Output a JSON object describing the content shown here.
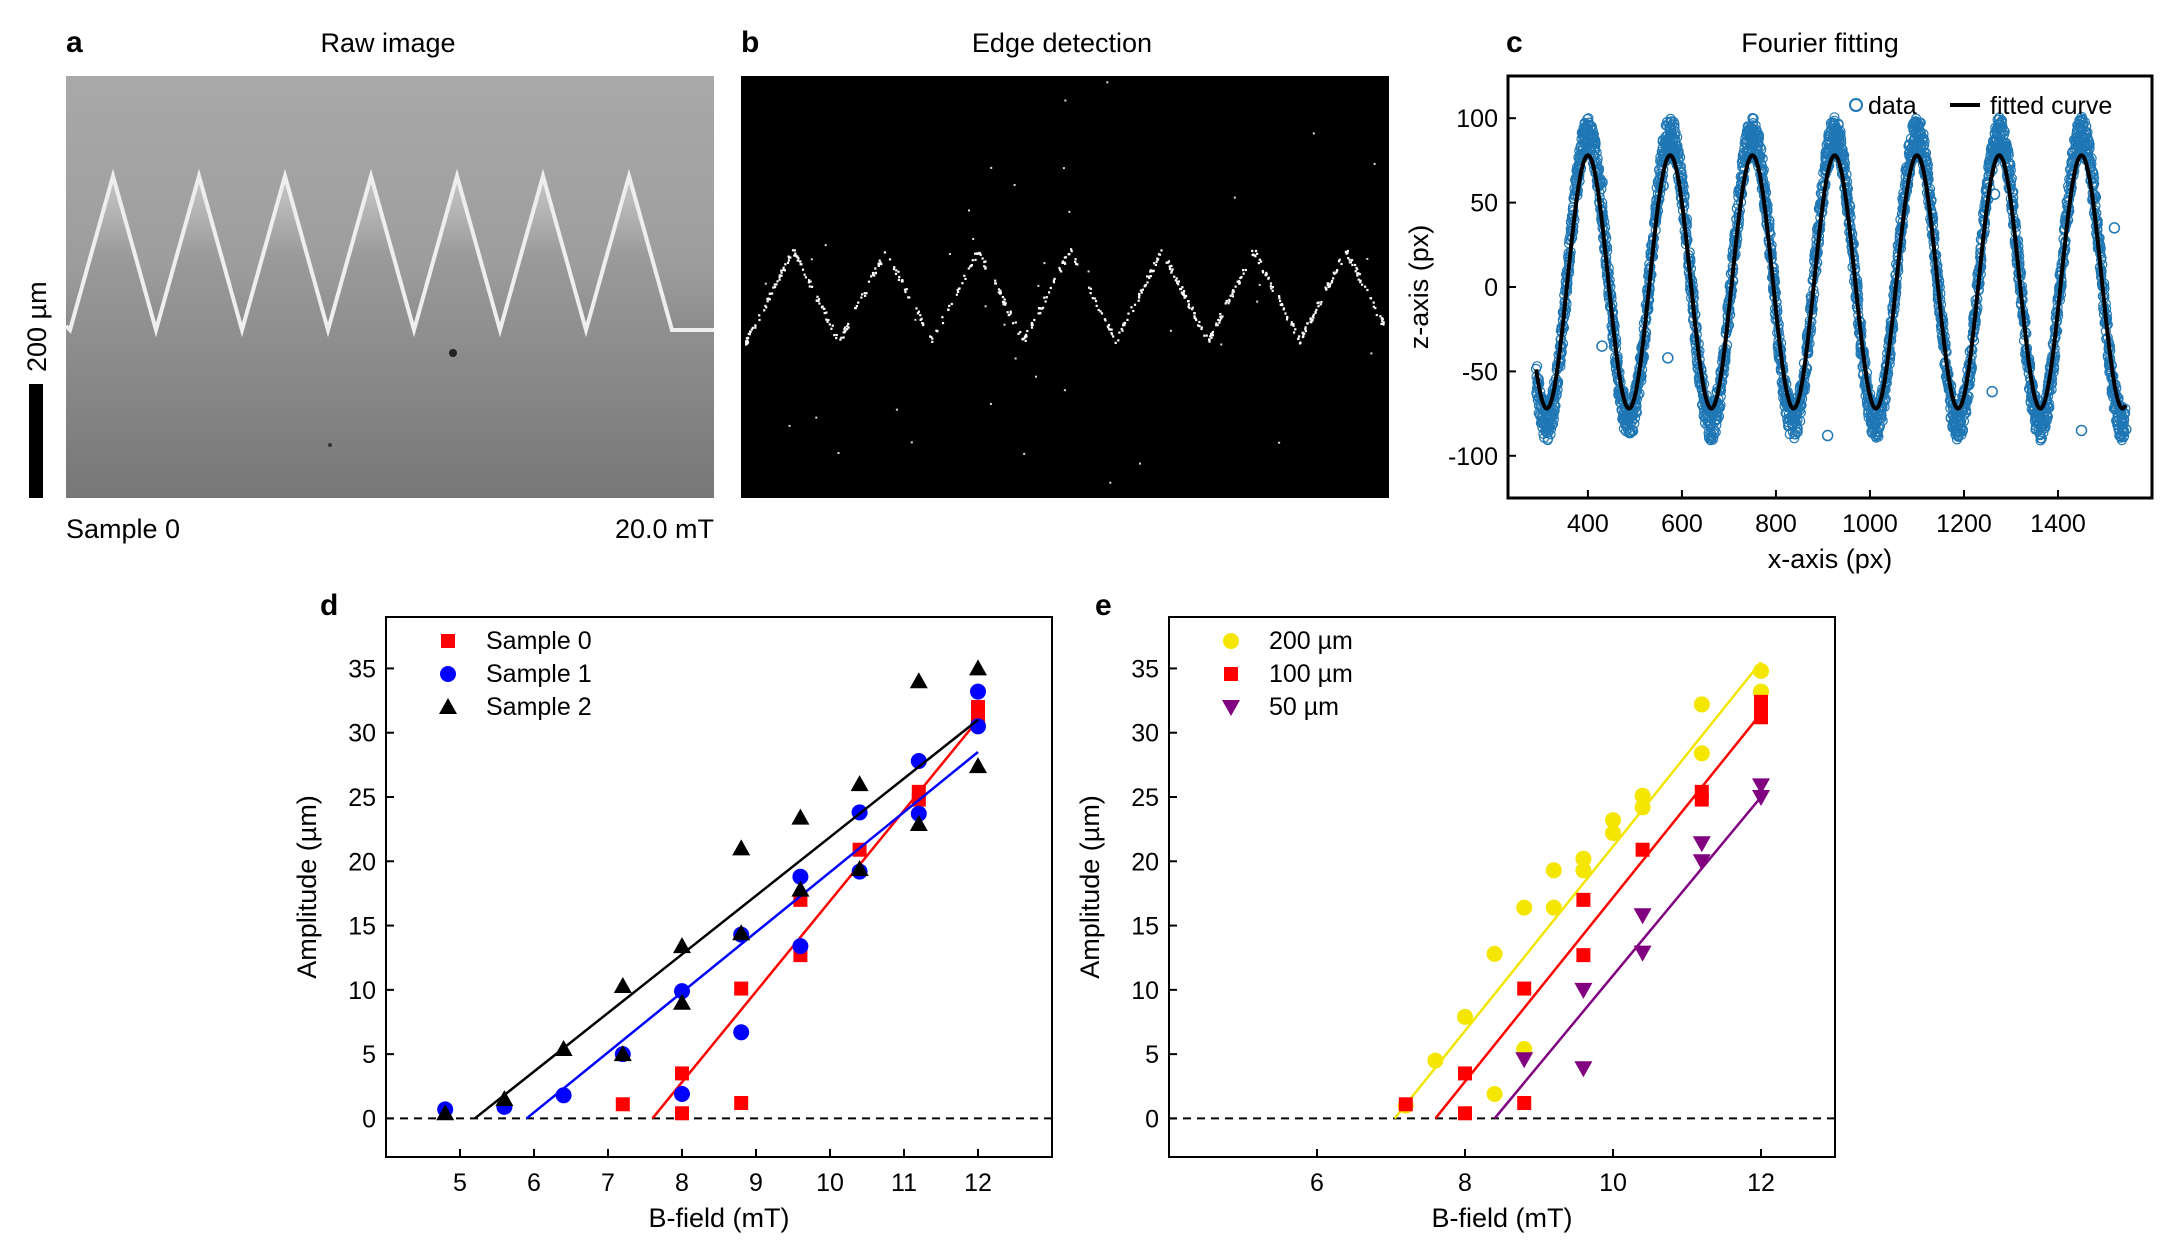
{
  "panels": {
    "a": {
      "label": "a",
      "title": "Raw image",
      "scale_bar": "200 µm",
      "sample": "Sample 0",
      "field": "20.0 mT"
    },
    "b": {
      "label": "b",
      "title": "Edge detection"
    },
    "c": {
      "label": "c",
      "title": "Fourier fitting"
    },
    "d": {
      "label": "d"
    },
    "e": {
      "label": "e"
    }
  },
  "chart_data": [
    {
      "panel": "c",
      "type": "scatter",
      "title": "Fourier fitting",
      "xlabel": "x-axis (px)",
      "ylabel": "z-axis (px)",
      "xlim": [
        230,
        1600
      ],
      "ylim": [
        -125,
        125
      ],
      "xticks": [
        400,
        600,
        800,
        1000,
        1200,
        1400
      ],
      "yticks": [
        100,
        50,
        0,
        -50,
        -100
      ],
      "legend": [
        "data",
        "fitted curve"
      ],
      "series": [
        {
          "name": "data",
          "color": "#1f77b4",
          "x_range": [
            290,
            1545
          ],
          "amplitude": 85,
          "period": 175,
          "phase_x": 400,
          "offset": 5
        },
        {
          "name": "fitted curve",
          "color": "#000000",
          "x_range": [
            290,
            1545
          ],
          "amplitude": 75,
          "period": 175,
          "phase_x": 400,
          "offset": 3
        }
      ],
      "outliers": [
        [
          430,
          -35
        ],
        [
          570,
          -42
        ],
        [
          430,
          62
        ],
        [
          560,
          60
        ],
        [
          1005,
          -70
        ],
        [
          910,
          -88
        ],
        [
          1260,
          -62
        ],
        [
          1265,
          55
        ],
        [
          1450,
          -85
        ],
        [
          1520,
          35
        ]
      ]
    },
    {
      "panel": "d",
      "type": "scatter",
      "xlabel": "B-field (mT)",
      "ylabel": "Amplitude (µm)",
      "xlim": [
        4,
        13
      ],
      "ylim": [
        -3,
        39
      ],
      "xticks": [
        5,
        6,
        7,
        8,
        9,
        10,
        11,
        12
      ],
      "yticks": [
        0,
        5,
        10,
        15,
        20,
        25,
        30,
        35
      ],
      "legend_position": "top-left",
      "series": [
        {
          "name": "Sample 0",
          "marker": "square",
          "color": "#ff0000",
          "points": [
            [
              7.2,
              1.1
            ],
            [
              8,
              3.5
            ],
            [
              8,
              0.4
            ],
            [
              8.8,
              10.1
            ],
            [
              8.8,
              1.2
            ],
            [
              9.6,
              17
            ],
            [
              9.6,
              12.7
            ],
            [
              10.4,
              20.9
            ],
            [
              11.2,
              25.4
            ],
            [
              11.2,
              24.8
            ],
            [
              12,
              32
            ],
            [
              12,
              31.2
            ],
            [
              12,
              30.8
            ]
          ],
          "fit": [
            [
              7.6,
              0
            ],
            [
              12,
              31
            ]
          ]
        },
        {
          "name": "Sample 1",
          "marker": "circle",
          "color": "#0000ff",
          "points": [
            [
              4.8,
              0.7
            ],
            [
              5.6,
              0.9
            ],
            [
              6.4,
              1.8
            ],
            [
              7.2,
              5
            ],
            [
              8,
              9.9
            ],
            [
              8,
              1.9
            ],
            [
              8.8,
              14.3
            ],
            [
              8.8,
              6.7
            ],
            [
              9.6,
              18.8
            ],
            [
              9.6,
              13.4
            ],
            [
              10.4,
              23.8
            ],
            [
              10.4,
              19.2
            ],
            [
              11.2,
              27.8
            ],
            [
              11.2,
              23.7
            ],
            [
              12,
              33.2
            ],
            [
              12,
              30.5
            ]
          ],
          "fit": [
            [
              5.9,
              0
            ],
            [
              12,
              28.5
            ]
          ]
        },
        {
          "name": "Sample 2",
          "marker": "triangle",
          "color": "#000000",
          "points": [
            [
              4.8,
              0.4
            ],
            [
              5.6,
              1.5
            ],
            [
              6.4,
              5.4
            ],
            [
              7.2,
              10.3
            ],
            [
              7.2,
              5
            ],
            [
              8,
              13.4
            ],
            [
              8,
              9
            ],
            [
              8.8,
              21
            ],
            [
              8.8,
              14.4
            ],
            [
              9.6,
              23.4
            ],
            [
              9.6,
              17.8
            ],
            [
              10.4,
              26
            ],
            [
              10.4,
              19.4
            ],
            [
              11.2,
              34
            ],
            [
              11.2,
              22.9
            ],
            [
              12,
              35
            ],
            [
              12,
              27.4
            ]
          ],
          "fit": [
            [
              5.2,
              0
            ],
            [
              12,
              31
            ]
          ]
        }
      ],
      "reference_line": {
        "y": 0,
        "style": "dashed"
      }
    },
    {
      "panel": "e",
      "type": "scatter",
      "xlabel": "B-field (mT)",
      "ylabel": "Amplitude (µm)",
      "xlim": [
        4,
        13
      ],
      "ylim": [
        -3,
        39
      ],
      "xticks": [
        6,
        8,
        10,
        12
      ],
      "yticks": [
        0,
        5,
        10,
        15,
        20,
        25,
        30,
        35
      ],
      "legend_position": "top-left",
      "series": [
        {
          "name": "200 µm",
          "marker": "circle",
          "color": "#ffff00",
          "points": [
            [
              7.2,
              1
            ],
            [
              7.6,
              4.5
            ],
            [
              8,
              7.9
            ],
            [
              8.4,
              12.8
            ],
            [
              8.4,
              1.9
            ],
            [
              8.8,
              16.4
            ],
            [
              8.8,
              5.4
            ],
            [
              9.2,
              19.3
            ],
            [
              9.2,
              16.4
            ],
            [
              9.6,
              20.2
            ],
            [
              9.6,
              19.3
            ],
            [
              10,
              23.2
            ],
            [
              10,
              22.2
            ],
            [
              10.4,
              25.1
            ],
            [
              10.4,
              24.2
            ],
            [
              11.2,
              32.2
            ],
            [
              11.2,
              28.4
            ],
            [
              12,
              34.8
            ],
            [
              12,
              33.2
            ]
          ],
          "fit": [
            [
              7.05,
              0
            ],
            [
              12,
              35.5
            ]
          ]
        },
        {
          "name": "100 µm",
          "marker": "square",
          "color": "#ff0000",
          "points": [
            [
              7.2,
              1.1
            ],
            [
              8,
              3.5
            ],
            [
              8,
              0.4
            ],
            [
              8.8,
              10.1
            ],
            [
              8.8,
              1.2
            ],
            [
              9.6,
              17
            ],
            [
              9.6,
              12.7
            ],
            [
              10.4,
              20.9
            ],
            [
              11.2,
              25.4
            ],
            [
              11.2,
              24.8
            ],
            [
              12,
              32.4
            ],
            [
              12,
              31.7
            ],
            [
              12,
              31.2
            ]
          ],
          "fit": [
            [
              7.6,
              0
            ],
            [
              12,
              31.5
            ]
          ]
        },
        {
          "name": "50 µm",
          "marker": "triangle-down",
          "color": "#800080",
          "points": [
            [
              8.8,
              4.6
            ],
            [
              9.6,
              10
            ],
            [
              9.6,
              3.9
            ],
            [
              10.4,
              15.8
            ],
            [
              10.4,
              12.9
            ],
            [
              11.2,
              21.4
            ],
            [
              11.2,
              20
            ],
            [
              12,
              25.9
            ],
            [
              12,
              25
            ]
          ],
          "fit": [
            [
              8.4,
              0
            ],
            [
              12,
              25
            ]
          ]
        }
      ],
      "reference_line": {
        "y": 0,
        "style": "dashed"
      }
    }
  ]
}
